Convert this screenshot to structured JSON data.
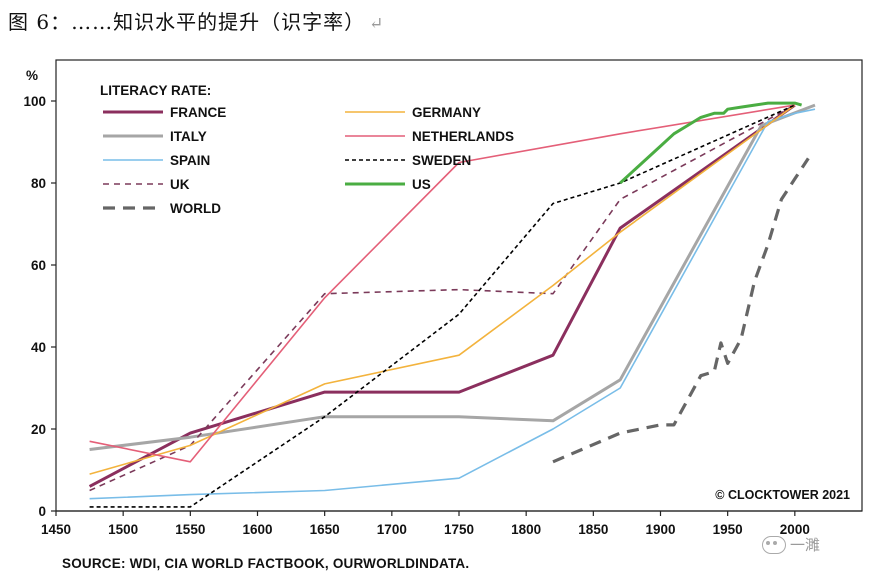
{
  "caption": {
    "text": "图 6：……知识水平的提升（识字率）",
    "mark": "↵"
  },
  "source": "SOURCE: WDI, CIA WORLD FACTBOOK, OURWORLDINDATA.",
  "watermark": "一濉",
  "chart_data": {
    "type": "line",
    "title": "",
    "legend_title": "LITERACY RATE:",
    "ylabel": "%",
    "xlabel": "",
    "xlim": [
      1450,
      2050
    ],
    "ylim": [
      0,
      110
    ],
    "xticks": [
      1450,
      1500,
      1550,
      1600,
      1650,
      1700,
      1750,
      1800,
      1850,
      1900,
      1950,
      2000
    ],
    "yticks": [
      0,
      20,
      40,
      60,
      80,
      100
    ],
    "annotation": "© CLOCKTOWER 2021",
    "series": [
      {
        "name": "FRANCE",
        "color": "#8b2f5e",
        "width": 3,
        "dash": "",
        "x": [
          1475,
          1550,
          1650,
          1750,
          1820,
          1870,
          2000
        ],
        "y": [
          6,
          19,
          29,
          29,
          38,
          69,
          99
        ]
      },
      {
        "name": "ITALY",
        "color": "#a6a6a6",
        "width": 3,
        "dash": "",
        "x": [
          1475,
          1550,
          1650,
          1750,
          1820,
          1870,
          1975,
          2015
        ],
        "y": [
          15,
          18,
          23,
          23,
          22,
          32,
          94,
          99
        ]
      },
      {
        "name": "SPAIN",
        "color": "#79bde8",
        "width": 1.6,
        "dash": "",
        "x": [
          1475,
          1550,
          1650,
          1750,
          1820,
          1870,
          1980,
          2000,
          2015
        ],
        "y": [
          3,
          4,
          5,
          8,
          20,
          30,
          95,
          97,
          98
        ]
      },
      {
        "name": "UK",
        "color": "#7b3a5a",
        "width": 1.6,
        "dash": "6,5",
        "x": [
          1475,
          1550,
          1650,
          1750,
          1820,
          1870,
          2000
        ],
        "y": [
          5,
          16,
          53,
          54,
          53,
          76,
          99
        ]
      },
      {
        "name": "WORLD",
        "color": "#666666",
        "width": 3.2,
        "dash": "12,8",
        "x": [
          1820,
          1870,
          1900,
          1910,
          1930,
          1940,
          1945,
          1950,
          1960,
          1970,
          1980,
          1990,
          2000,
          2010
        ],
        "y": [
          12,
          19,
          21,
          21,
          33,
          34,
          41,
          36,
          42,
          56,
          65,
          76,
          81,
          86
        ]
      },
      {
        "name": "GERMANY",
        "color": "#f3b33d",
        "width": 1.6,
        "dash": "",
        "x": [
          1475,
          1550,
          1650,
          1750,
          1820,
          1870,
          2000
        ],
        "y": [
          9,
          16,
          31,
          38,
          55,
          68,
          99
        ]
      },
      {
        "name": "NETHERLANDS",
        "color": "#e45f78",
        "width": 1.6,
        "dash": "",
        "x": [
          1475,
          1550,
          1650,
          1750,
          1870,
          2000
        ],
        "y": [
          17,
          12,
          52,
          85,
          92,
          99
        ]
      },
      {
        "name": "SWEDEN",
        "color": "#000000",
        "width": 1.6,
        "dash": "4,3",
        "x": [
          1475,
          1550,
          1650,
          1750,
          1820,
          1870,
          2000
        ],
        "y": [
          1,
          1,
          23,
          48,
          75,
          80,
          99
        ]
      },
      {
        "name": "US",
        "color": "#4aad42",
        "width": 3,
        "dash": "",
        "x": [
          1870,
          1880,
          1890,
          1900,
          1910,
          1920,
          1930,
          1940,
          1947,
          1950,
          1960,
          1970,
          1980,
          1990,
          2000,
          2005
        ],
        "y": [
          80,
          83,
          86,
          89,
          92,
          94,
          96,
          97,
          97,
          98,
          98.5,
          99,
          99.5,
          99.5,
          99.5,
          99
        ]
      }
    ],
    "legend_order": [
      "FRANCE",
      "GERMANY",
      "ITALY",
      "NETHERLANDS",
      "SPAIN",
      "SWEDEN",
      "UK",
      "US",
      "WORLD"
    ]
  }
}
